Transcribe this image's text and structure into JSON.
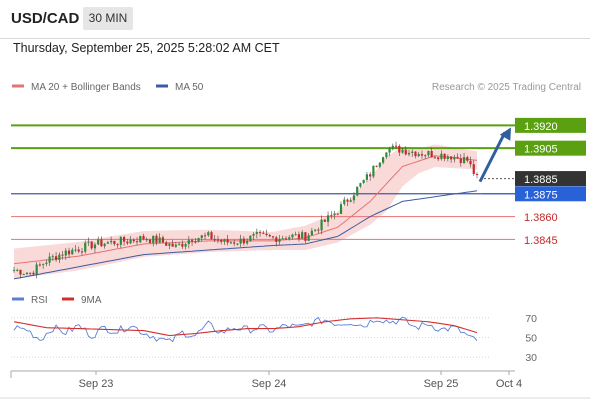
{
  "header": {
    "symbol": "USD/CAD",
    "timeframe": "30 MIN",
    "datetime": "Thursday, September 25, 2025 5:28:02 AM CET"
  },
  "colors": {
    "up_candle": "#2e8b3a",
    "down_candle": "#c62828",
    "ma20": "#e57373",
    "bollinger_fill": "#f8d4d2",
    "ma50": "#3b5ba5",
    "resistance": "#5aa010",
    "support": "#e57373",
    "last_price_bg": "#333333",
    "rsi": "#5b7fd6",
    "rsi_ma": "#d32f2f",
    "arrow": "#2f5f9e"
  },
  "chart_data": [
    {
      "type": "candlestick",
      "title": "",
      "legend": [
        {
          "name": "MA 20 + Bollinger Bands",
          "color": "#e57373"
        },
        {
          "name": "MA 50",
          "color": "#3b5ba5"
        }
      ],
      "credit": "Research © 2025 Trading Central",
      "ylim": [
        1.3815,
        1.3938
      ],
      "x_ticks": [
        "Sep 23",
        "Sep 24",
        "Sep 25",
        "Oct 4"
      ],
      "levels": [
        {
          "value": 1.392,
          "label": "1.3920",
          "kind": "resistance"
        },
        {
          "value": 1.3905,
          "label": "1.3905",
          "kind": "resistance"
        },
        {
          "value": 1.3885,
          "label": "1.3885",
          "kind": "last"
        },
        {
          "value": 1.3875,
          "label": "1.3875",
          "kind": "pivot"
        },
        {
          "value": 1.386,
          "label": "1.3860",
          "kind": "support"
        },
        {
          "value": 1.3845,
          "label": "1.3845",
          "kind": "support"
        }
      ],
      "close_anchors": [
        [
          0,
          1.3825
        ],
        [
          5,
          1.3823
        ],
        [
          10,
          1.3831
        ],
        [
          15,
          1.3836
        ],
        [
          20,
          1.3839
        ],
        [
          25,
          1.3842
        ],
        [
          30,
          1.3843
        ],
        [
          35,
          1.3844
        ],
        [
          40,
          1.3846
        ],
        [
          45,
          1.3844
        ],
        [
          50,
          1.384
        ],
        [
          55,
          1.3846
        ],
        [
          60,
          1.3847
        ],
        [
          65,
          1.3843
        ],
        [
          70,
          1.3844
        ],
        [
          75,
          1.3847
        ],
        [
          80,
          1.3846
        ],
        [
          85,
          1.3847
        ],
        [
          90,
          1.3847
        ],
        [
          95,
          1.3855
        ],
        [
          100,
          1.3864
        ],
        [
          105,
          1.3876
        ],
        [
          110,
          1.3888
        ],
        [
          115,
          1.3905
        ],
        [
          120,
          1.3904
        ],
        [
          125,
          1.3902
        ],
        [
          130,
          1.3901
        ],
        [
          135,
          1.39
        ],
        [
          140,
          1.3897
        ],
        [
          143,
          1.3885
        ]
      ],
      "bar_count": 144,
      "ma20_anchors": [
        [
          0,
          1.3829
        ],
        [
          20,
          1.3834
        ],
        [
          40,
          1.3842
        ],
        [
          60,
          1.3844
        ],
        [
          80,
          1.3844
        ],
        [
          90,
          1.3846
        ],
        [
          100,
          1.3853
        ],
        [
          110,
          1.387
        ],
        [
          120,
          1.3893
        ],
        [
          130,
          1.39
        ],
        [
          143,
          1.3897
        ]
      ],
      "band_width_anchors": [
        [
          0,
          0.001
        ],
        [
          30,
          0.0009
        ],
        [
          50,
          0.0008
        ],
        [
          80,
          0.0006
        ],
        [
          100,
          0.001
        ],
        [
          115,
          0.0018
        ],
        [
          125,
          0.0008
        ],
        [
          143,
          0.0006
        ]
      ],
      "ma50_anchors": [
        [
          0,
          1.3819
        ],
        [
          20,
          1.3827
        ],
        [
          40,
          1.3835
        ],
        [
          60,
          1.3838
        ],
        [
          80,
          1.3841
        ],
        [
          90,
          1.3842
        ],
        [
          100,
          1.3847
        ],
        [
          110,
          1.386
        ],
        [
          120,
          1.387
        ],
        [
          143,
          1.3877
        ]
      ],
      "projection": {
        "from": 1.3883,
        "to": 1.392
      }
    },
    {
      "type": "line",
      "title": "",
      "legend": [
        {
          "name": "RSI",
          "color": "#5b7fd6"
        },
        {
          "name": "9MA",
          "color": "#d32f2f"
        }
      ],
      "ylim": [
        22,
        80
      ],
      "y_ticks": [
        70,
        50,
        30
      ],
      "rsi_anchors": [
        [
          0,
          60
        ],
        [
          4,
          58
        ],
        [
          8,
          48
        ],
        [
          12,
          60
        ],
        [
          16,
          55
        ],
        [
          20,
          62
        ],
        [
          24,
          52
        ],
        [
          28,
          60
        ],
        [
          32,
          56
        ],
        [
          36,
          63
        ],
        [
          40,
          55
        ],
        [
          44,
          50
        ],
        [
          48,
          45
        ],
        [
          52,
          55
        ],
        [
          56,
          52
        ],
        [
          60,
          63
        ],
        [
          64,
          55
        ],
        [
          68,
          60
        ],
        [
          72,
          58
        ],
        [
          76,
          60
        ],
        [
          80,
          57
        ],
        [
          84,
          62
        ],
        [
          88,
          60
        ],
        [
          92,
          65
        ],
        [
          96,
          68
        ],
        [
          100,
          64
        ],
        [
          104,
          66
        ],
        [
          108,
          62
        ],
        [
          112,
          70
        ],
        [
          116,
          66
        ],
        [
          120,
          68
        ],
        [
          124,
          60
        ],
        [
          128,
          64
        ],
        [
          132,
          58
        ],
        [
          136,
          60
        ],
        [
          140,
          52
        ],
        [
          143,
          45
        ]
      ],
      "ma9_anchors": [
        [
          0,
          66
        ],
        [
          10,
          60
        ],
        [
          20,
          59
        ],
        [
          30,
          58
        ],
        [
          40,
          57
        ],
        [
          48,
          52
        ],
        [
          56,
          54
        ],
        [
          64,
          57
        ],
        [
          72,
          59
        ],
        [
          80,
          59
        ],
        [
          88,
          61
        ],
        [
          96,
          66
        ],
        [
          104,
          69
        ],
        [
          112,
          70
        ],
        [
          120,
          68
        ],
        [
          128,
          66
        ],
        [
          136,
          62
        ],
        [
          143,
          55
        ]
      ]
    }
  ]
}
